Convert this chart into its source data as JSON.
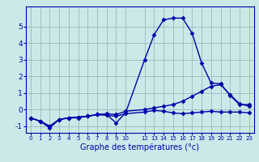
{
  "background_color": "#cce8e8",
  "grid_color": "#99bbbb",
  "line_color": "#0000aa",
  "xlabel": "Graphe des températures (°c)",
  "xlim": [
    -0.5,
    23.5
  ],
  "ylim": [
    -1.4,
    6.2
  ],
  "yticks": [
    -1,
    0,
    1,
    2,
    3,
    4,
    5
  ],
  "xticks": [
    0,
    1,
    2,
    3,
    4,
    5,
    6,
    7,
    8,
    9,
    10,
    12,
    13,
    14,
    15,
    16,
    17,
    18,
    19,
    20,
    21,
    22,
    23
  ],
  "series": [
    {
      "x": [
        0,
        1,
        2,
        3,
        4,
        5,
        6,
        7,
        8,
        9,
        10,
        12,
        13,
        14,
        15,
        16,
        17,
        18,
        19,
        20,
        21,
        22,
        23
      ],
      "y": [
        -0.5,
        -0.7,
        -1.1,
        -0.6,
        -0.5,
        -0.5,
        -0.4,
        -0.3,
        -0.3,
        -0.8,
        -0.2,
        3.0,
        4.5,
        5.4,
        5.5,
        5.5,
        4.6,
        2.8,
        1.6,
        1.55,
        0.85,
        0.3,
        0.3
      ],
      "marker": "D",
      "markersize": 2.5,
      "linewidth": 1.0
    },
    {
      "x": [
        0,
        1,
        2,
        3,
        4,
        5,
        6,
        7,
        8,
        9,
        10,
        12,
        13,
        14,
        15,
        16,
        17,
        18,
        19,
        20,
        21,
        22,
        23
      ],
      "y": [
        -0.5,
        -0.7,
        -1.0,
        -0.6,
        -0.5,
        -0.45,
        -0.4,
        -0.3,
        -0.25,
        -0.3,
        -0.1,
        0.0,
        0.1,
        0.2,
        0.3,
        0.5,
        0.8,
        1.1,
        1.4,
        1.5,
        0.9,
        0.35,
        0.2
      ],
      "marker": "D",
      "markersize": 2.5,
      "linewidth": 1.0
    },
    {
      "x": [
        0,
        1,
        2,
        3,
        4,
        5,
        6,
        7,
        8,
        9,
        10,
        12,
        13,
        14,
        15,
        16,
        17,
        18,
        19,
        20,
        21,
        22,
        23
      ],
      "y": [
        -0.5,
        -0.7,
        -1.0,
        -0.6,
        -0.5,
        -0.45,
        -0.4,
        -0.3,
        -0.35,
        -0.4,
        -0.25,
        -0.15,
        -0.05,
        -0.1,
        -0.2,
        -0.25,
        -0.2,
        -0.15,
        -0.1,
        -0.15,
        -0.15,
        -0.15,
        -0.2
      ],
      "marker": "D",
      "markersize": 2.5,
      "linewidth": 1.0
    }
  ]
}
